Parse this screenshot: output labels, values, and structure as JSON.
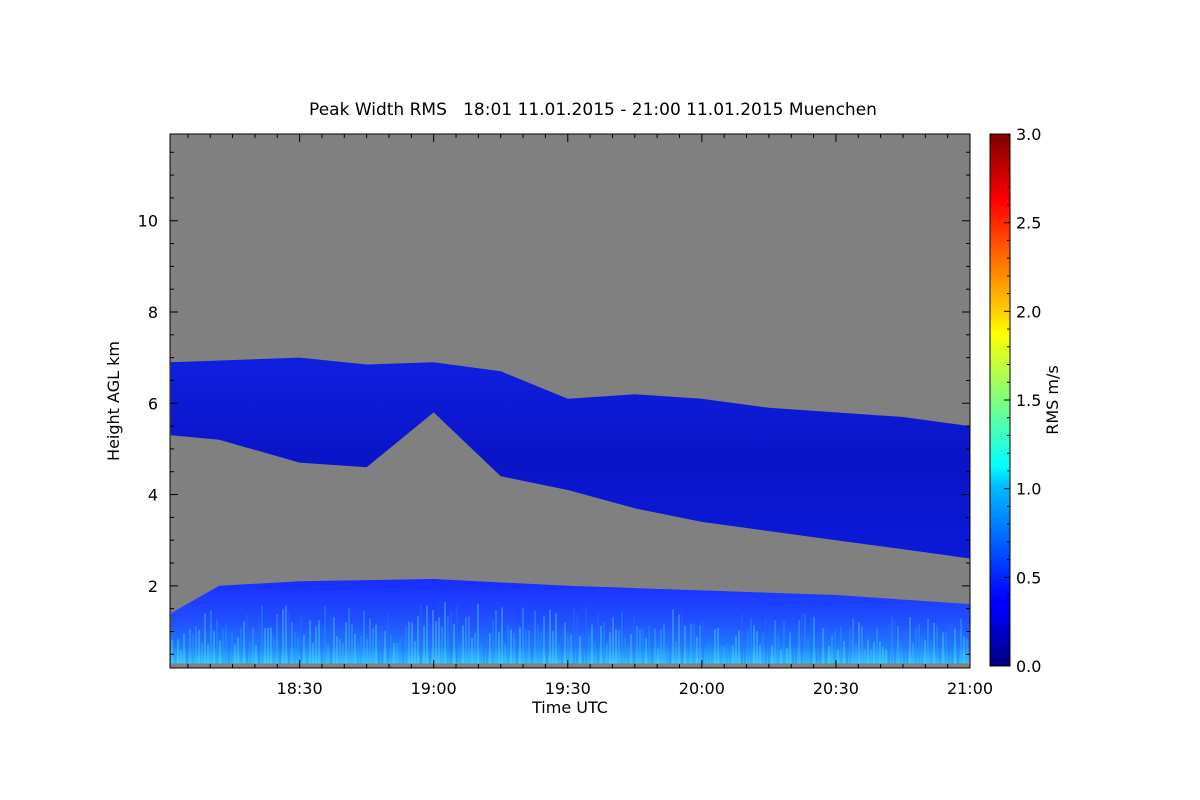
{
  "chart_data": {
    "type": "heatmap",
    "title": "Peak Width RMS   18:01 11.01.2015 - 21:00 11.01.2015 Muenchen",
    "xlabel": "Time UTC",
    "ylabel": "Height AGL km",
    "colorbar_label": "RMS m/s",
    "x_range": [
      "18:01",
      "21:00"
    ],
    "x_ticks": [
      "18:30",
      "19:00",
      "19:30",
      "20:00",
      "20:30",
      "21:00"
    ],
    "y_range_km": [
      0.2,
      11.9
    ],
    "y_ticks": [
      "2",
      "4",
      "6",
      "8",
      "10"
    ],
    "colorbar_range": [
      0.0,
      3.0
    ],
    "colorbar_ticks": [
      "0.0",
      "0.5",
      "1.0",
      "1.5",
      "2.0",
      "2.5",
      "3.0"
    ],
    "colormap": "jet",
    "background_color": "#808080",
    "layers": [
      {
        "name": "upper",
        "rms_typical": 0.2,
        "top_km": [
          [
            18.02,
            6.9
          ],
          [
            18.5,
            7.0
          ],
          [
            18.75,
            6.85
          ],
          [
            19.0,
            6.9
          ],
          [
            19.25,
            6.7
          ],
          [
            19.5,
            6.1
          ],
          [
            19.75,
            6.2
          ],
          [
            20.0,
            6.1
          ],
          [
            20.25,
            5.9
          ],
          [
            20.5,
            5.8
          ],
          [
            20.75,
            5.7
          ],
          [
            21.0,
            5.5
          ]
        ],
        "bottom_km": [
          [
            18.02,
            5.3
          ],
          [
            18.2,
            5.2
          ],
          [
            18.5,
            4.7
          ],
          [
            18.75,
            4.6
          ],
          [
            19.0,
            5.8
          ],
          [
            19.25,
            4.4
          ],
          [
            19.5,
            4.1
          ],
          [
            19.75,
            3.7
          ],
          [
            20.0,
            3.4
          ],
          [
            20.25,
            3.2
          ],
          [
            20.5,
            3.0
          ],
          [
            20.75,
            2.8
          ],
          [
            21.0,
            2.6
          ]
        ]
      },
      {
        "name": "lower",
        "rms_typical": 0.5,
        "top_km": [
          [
            18.02,
            1.4
          ],
          [
            18.2,
            2.0
          ],
          [
            18.5,
            2.1
          ],
          [
            19.0,
            2.15
          ],
          [
            19.5,
            2.0
          ],
          [
            20.0,
            1.9
          ],
          [
            20.5,
            1.8
          ],
          [
            21.0,
            1.6
          ]
        ],
        "bottom_km": [
          [
            18.02,
            0.3
          ],
          [
            21.0,
            0.3
          ]
        ]
      }
    ]
  }
}
